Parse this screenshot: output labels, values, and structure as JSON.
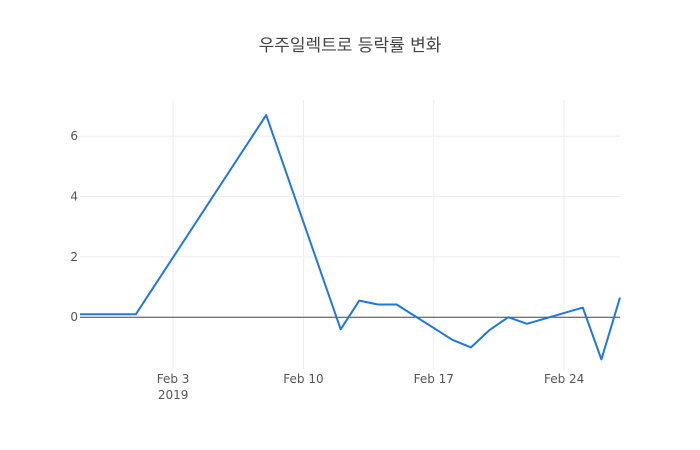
{
  "chart_data": {
    "type": "line",
    "title": "우주일렉트로 등락률 변화",
    "xlabel": "",
    "ylabel": "",
    "x": [
      "2019-01-29",
      "2019-02-01",
      "2019-02-08",
      "2019-02-12",
      "2019-02-13",
      "2019-02-14",
      "2019-02-15",
      "2019-02-18",
      "2019-02-19",
      "2019-02-20",
      "2019-02-21",
      "2019-02-22",
      "2019-02-25",
      "2019-02-26",
      "2019-02-27"
    ],
    "values": [
      0.1,
      0.1,
      6.7,
      -0.4,
      0.55,
      0.42,
      0.42,
      -0.75,
      -1.0,
      -0.42,
      0.0,
      -0.22,
      0.32,
      -1.4,
      0.65
    ],
    "xlim": [
      "2019-01-29",
      "2019-02-27"
    ],
    "ylim": [
      -1.75,
      7.2
    ],
    "x_ticks": [
      {
        "date": "2019-02-03",
        "label": "Feb 3",
        "sublabel": "2019"
      },
      {
        "date": "2019-02-10",
        "label": "Feb 10",
        "sublabel": ""
      },
      {
        "date": "2019-02-17",
        "label": "Feb 17",
        "sublabel": ""
      },
      {
        "date": "2019-02-24",
        "label": "Feb 24",
        "sublabel": ""
      }
    ],
    "y_ticks": [
      0,
      2,
      4,
      6
    ],
    "grid": true,
    "line_color": "#1f77e0",
    "zero_line_color": "#444444",
    "grid_color": "#eeeeee"
  }
}
